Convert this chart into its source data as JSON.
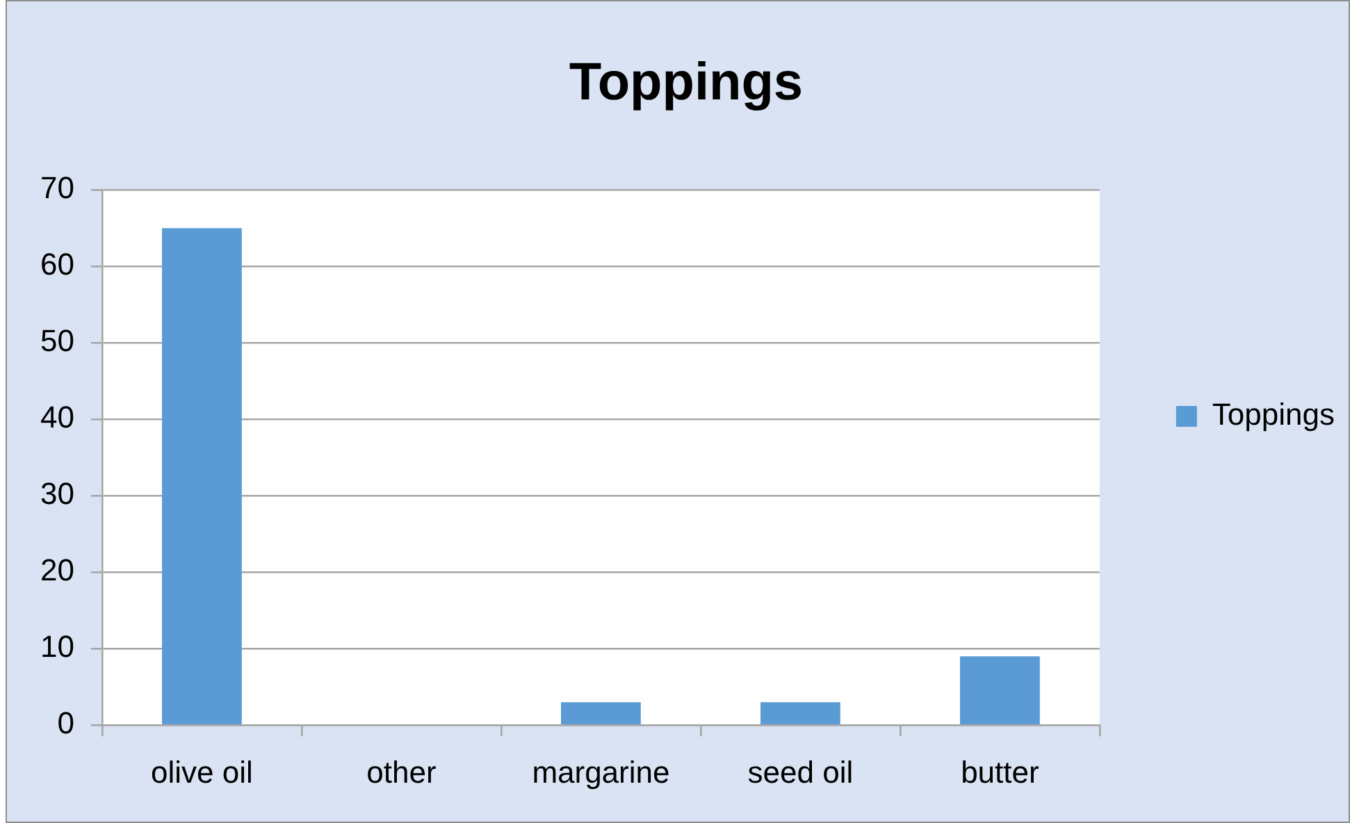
{
  "chart_data": {
    "type": "bar",
    "title": "Toppings",
    "categories": [
      "olive oil",
      "other",
      "margarine",
      "seed oil",
      "butter"
    ],
    "series": [
      {
        "name": "Toppings",
        "color": "#5b9bd5",
        "values": [
          65,
          0,
          3,
          3,
          9
        ]
      }
    ],
    "ylim": [
      0,
      70
    ],
    "yticks": [
      0,
      10,
      20,
      30,
      40,
      50,
      60,
      70
    ],
    "grid": "y",
    "legend": "right"
  }
}
